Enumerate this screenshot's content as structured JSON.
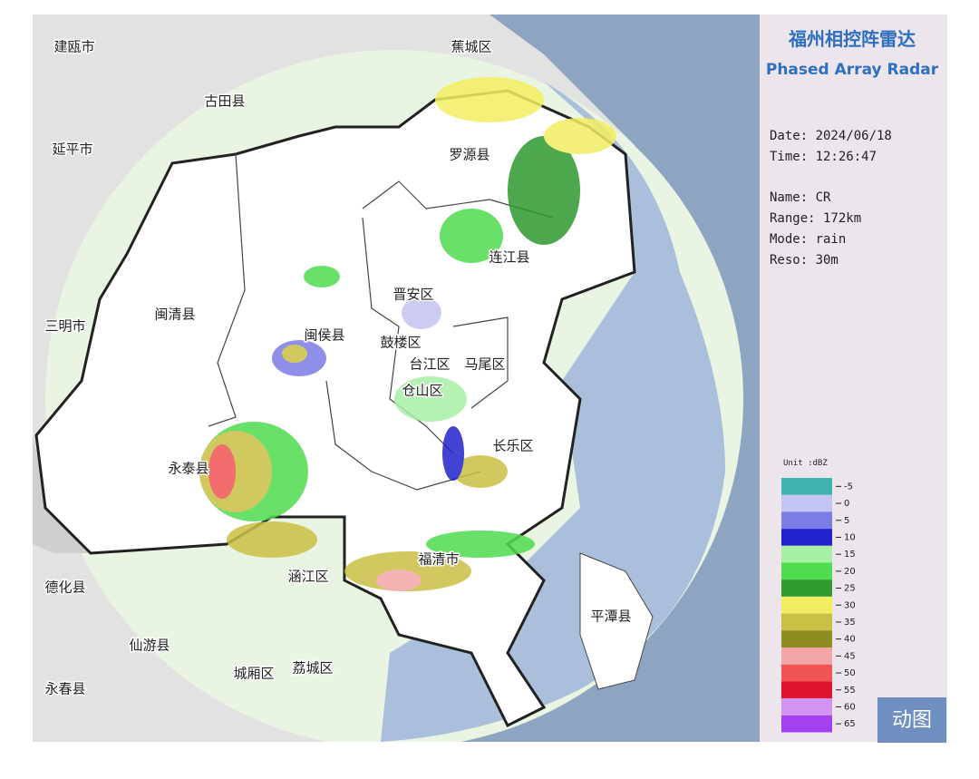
{
  "header": {
    "title_cn": "福州相控阵雷达",
    "title_en": "Phased Array Radar"
  },
  "info": [
    "Date: 2024/06/18",
    "Time: 12:26:47",
    "Name: CR",
    "Range: 172km",
    "Mode: rain",
    "Reso: 30m"
  ],
  "places": [
    "建瓯市",
    "蕉城区",
    "古田县",
    "延平市",
    "罗源县",
    "连江县",
    "晋安区",
    "闽清县",
    "三明市",
    "闽侯县",
    "鼓楼区",
    "台江区",
    "马尾区",
    "仓山区",
    "长乐区",
    "永泰县",
    "福清市",
    "涵江区",
    "德化县",
    "平潭县",
    "仙游县",
    "城厢区",
    "荔城区",
    "永春县"
  ],
  "legend": {
    "unit": "Unit :dBZ",
    "items": [
      {
        "label": "-5",
        "color": "#3fb3ad"
      },
      {
        "label": "0",
        "color": "#c4c4f2"
      },
      {
        "label": "5",
        "color": "#7c7ce6"
      },
      {
        "label": "10",
        "color": "#2222cc"
      },
      {
        "label": "15",
        "color": "#a6f0a6"
      },
      {
        "label": "20",
        "color": "#4fdc4f"
      },
      {
        "label": "25",
        "color": "#2f9a2f"
      },
      {
        "label": "30",
        "color": "#f2ee62"
      },
      {
        "label": "35",
        "color": "#c9c045"
      },
      {
        "label": "40",
        "color": "#8f8d22"
      },
      {
        "label": "45",
        "color": "#f3a6a6"
      },
      {
        "label": "50",
        "color": "#f05454"
      },
      {
        "label": "55",
        "color": "#e0142e"
      },
      {
        "label": "60",
        "color": "#d393f0"
      },
      {
        "label": "65",
        "color": "#a53ff2"
      }
    ]
  },
  "button": "动图"
}
